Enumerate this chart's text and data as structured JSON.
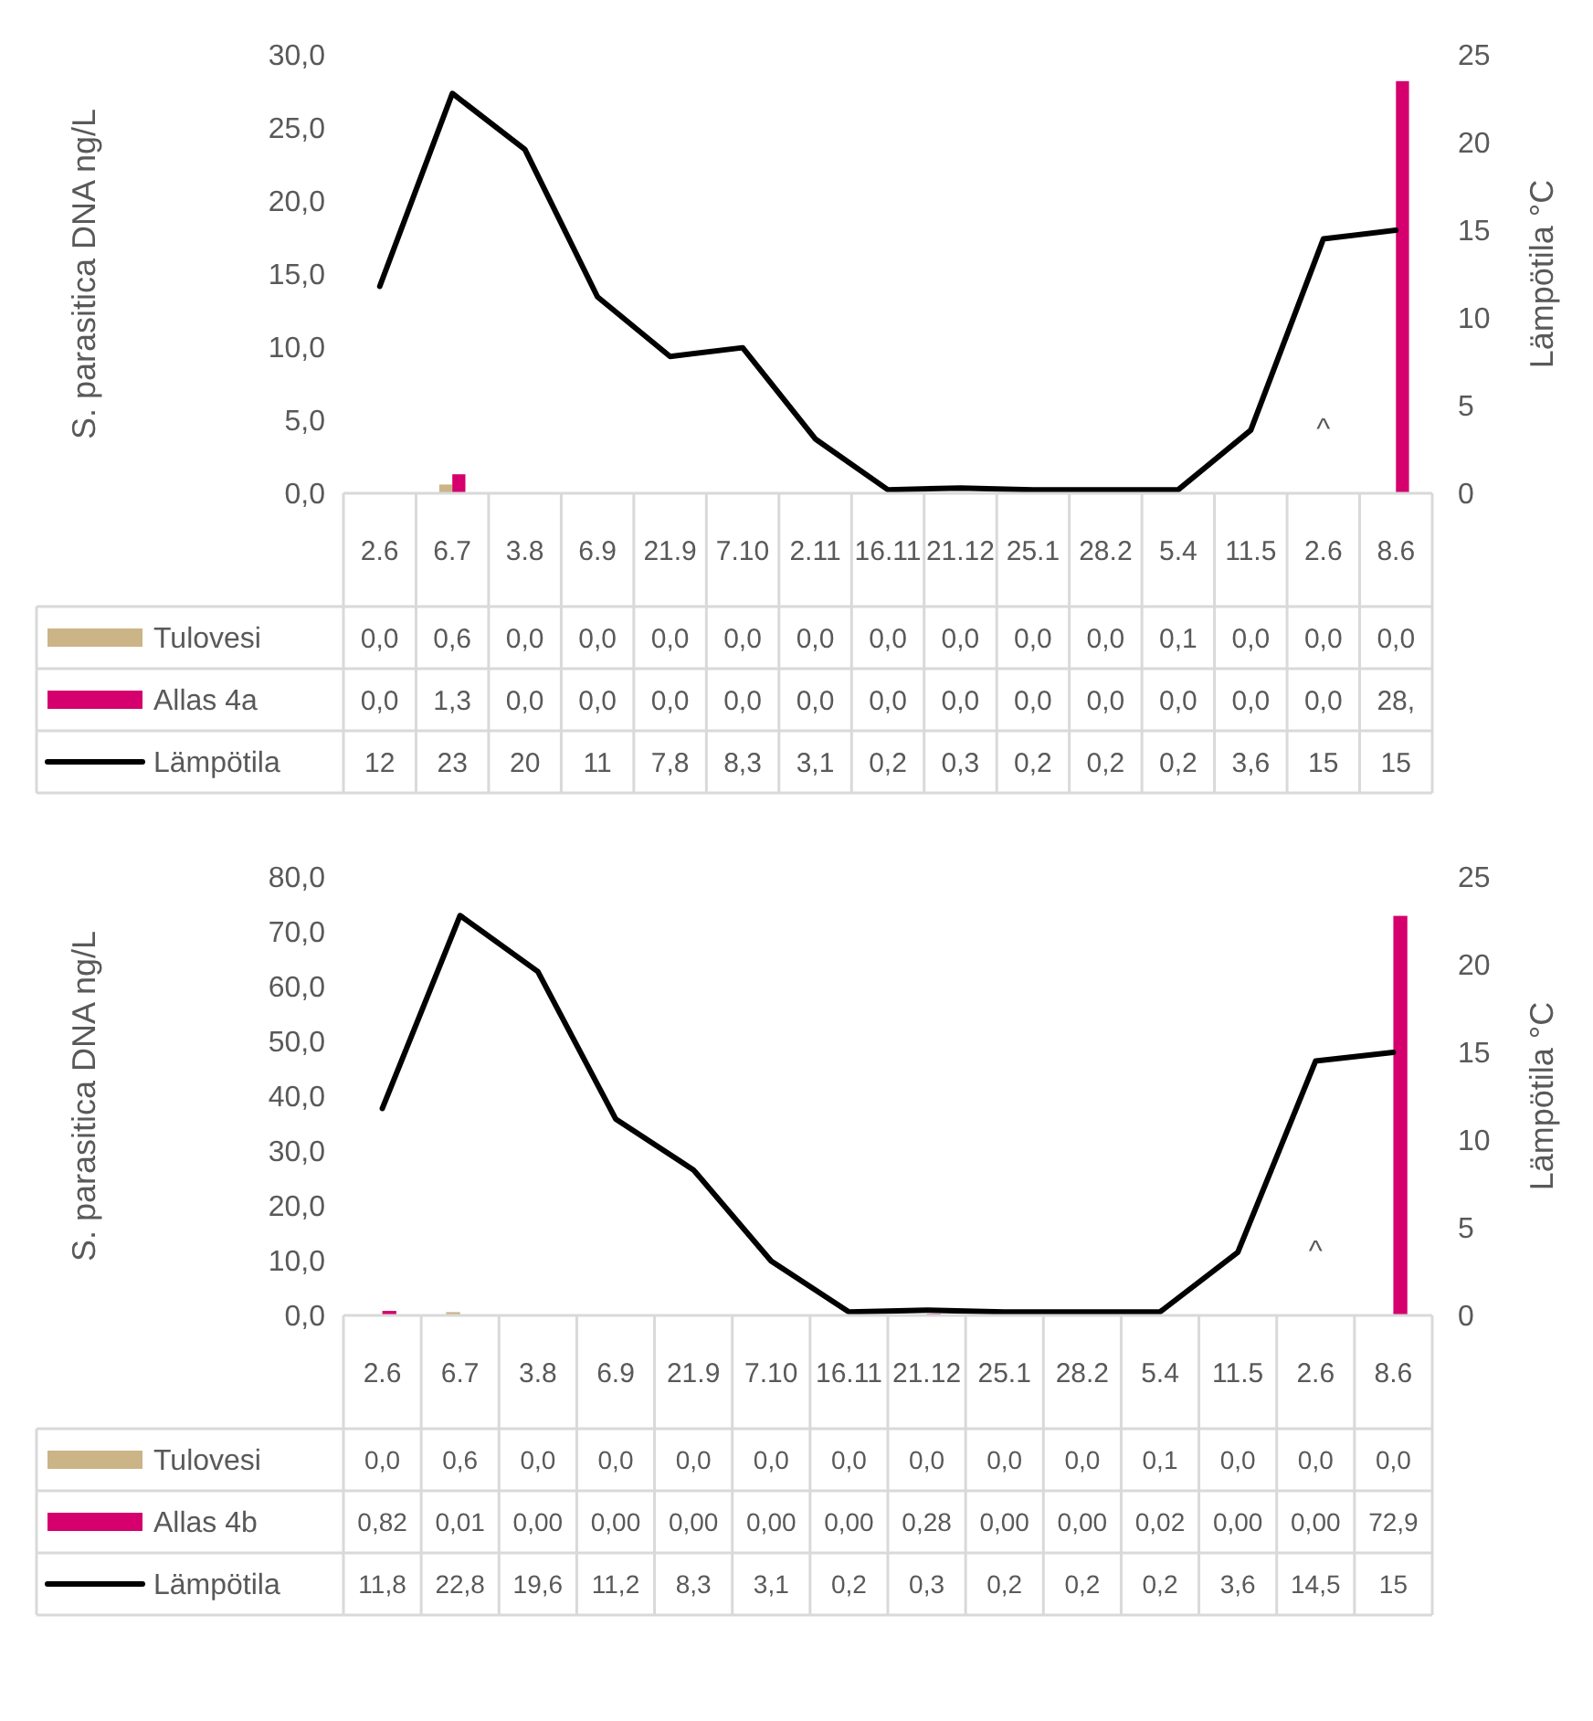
{
  "chart_data": [
    {
      "type": "bar",
      "ylabel": "S. parasitica DNA ng/L",
      "y2label": "Lämpötila °C",
      "categories": [
        "2.6",
        "6.7",
        "3.8",
        "6.9",
        "21.9",
        "7.10",
        "2.11",
        "16.11",
        "21.12",
        "25.1",
        "28.2",
        "5.4",
        "11.5",
        "2.6",
        "8.6"
      ],
      "ylim": [
        0,
        30
      ],
      "yticks": [
        {
          "value": 0,
          "label": "0,0"
        },
        {
          "value": 5,
          "label": "5,0"
        },
        {
          "value": 10,
          "label": "10,0"
        },
        {
          "value": 15,
          "label": "15,0"
        },
        {
          "value": 20,
          "label": "20,0"
        },
        {
          "value": 25,
          "label": "25,0"
        },
        {
          "value": 30,
          "label": "30,0"
        }
      ],
      "y2lim": [
        0,
        25
      ],
      "y2ticks": [
        0,
        5,
        10,
        15,
        20,
        25
      ],
      "legend": "bottom",
      "annotations": [
        "^"
      ],
      "series": [
        {
          "name": "Tulovesi",
          "color": "#cbb486",
          "values": [
            0,
            0.6,
            0,
            0,
            0,
            0,
            0,
            0,
            0,
            0,
            0,
            0.1,
            0,
            0,
            0
          ],
          "value_labels": [
            "0,0",
            "0,6",
            "0,0",
            "0,0",
            "0,0",
            "0,0",
            "0,0",
            "0,0",
            "0,0",
            "0,0",
            "0,0",
            "0,1",
            "0,0",
            "0,0",
            "0,0"
          ]
        },
        {
          "name": "Allas 4a",
          "color": "#d5006d",
          "values": [
            0,
            1.3,
            0,
            0,
            0,
            0,
            0,
            0,
            0,
            0,
            0,
            0,
            0,
            0,
            28.2
          ],
          "value_labels": [
            "0,0",
            "1,3",
            "0,0",
            "0,0",
            "0,0",
            "0,0",
            "0,0",
            "0,0",
            "0,0",
            "0,0",
            "0,0",
            "0,0",
            "0,0",
            "0,0",
            "28,"
          ]
        },
        {
          "name": "Lämpötila",
          "type": "line",
          "axis": "y2",
          "color": "#000000",
          "values": [
            11.8,
            22.8,
            19.6,
            11.2,
            7.8,
            8.3,
            3.1,
            0.2,
            0.3,
            0.2,
            0.2,
            0.2,
            3.6,
            14.5,
            15
          ],
          "value_labels": [
            "12",
            "23",
            "20",
            "11",
            "7,8",
            "8,3",
            "3,1",
            "0,2",
            "0,3",
            "0,2",
            "0,2",
            "0,2",
            "3,6",
            "15",
            "15"
          ]
        }
      ]
    },
    {
      "type": "bar",
      "ylabel": "S. parasitica DNA ng/L",
      "y2label": "Lämpötila °C",
      "categories": [
        "2.6",
        "6.7",
        "3.8",
        "6.9",
        "21.9",
        "7.10",
        "16.11",
        "21.12",
        "25.1",
        "28.2",
        "5.4",
        "11.5",
        "2.6",
        "8.6"
      ],
      "ylim": [
        0,
        80
      ],
      "yticks": [
        {
          "value": 0,
          "label": "0,0"
        },
        {
          "value": 10,
          "label": "10,0"
        },
        {
          "value": 20,
          "label": "20,0"
        },
        {
          "value": 30,
          "label": "30,0"
        },
        {
          "value": 40,
          "label": "40,0"
        },
        {
          "value": 50,
          "label": "50,0"
        },
        {
          "value": 60,
          "label": "60,0"
        },
        {
          "value": 70,
          "label": "70,0"
        },
        {
          "value": 80,
          "label": "80,0"
        }
      ],
      "y2lim": [
        0,
        25
      ],
      "y2ticks": [
        0,
        5,
        10,
        15,
        20,
        25
      ],
      "legend": "bottom",
      "annotations": [
        "^"
      ],
      "series": [
        {
          "name": "Tulovesi",
          "color": "#cbb486",
          "values": [
            0,
            0.6,
            0,
            0,
            0,
            0,
            0,
            0,
            0,
            0,
            0.1,
            0,
            0,
            0
          ],
          "value_labels": [
            "0,0",
            "0,6",
            "0,0",
            "0,0",
            "0,0",
            "0,0",
            "0,0",
            "0,0",
            "0,0",
            "0,0",
            "0,1",
            "0,0",
            "0,0",
            "0,0"
          ]
        },
        {
          "name": "Allas 4b",
          "color": "#d5006d",
          "values": [
            0.82,
            0.01,
            0,
            0,
            0,
            0,
            0,
            0.28,
            0,
            0,
            0.02,
            0,
            0,
            72.9
          ],
          "value_labels": [
            "0,82",
            "0,01",
            "0,00",
            "0,00",
            "0,00",
            "0,00",
            "0,00",
            "0,28",
            "0,00",
            "0,00",
            "0,02",
            "0,00",
            "0,00",
            "72,9"
          ]
        },
        {
          "name": "Lämpötila",
          "type": "line",
          "axis": "y2",
          "color": "#000000",
          "values": [
            11.8,
            22.8,
            19.6,
            11.2,
            8.3,
            3.1,
            0.2,
            0.3,
            0.2,
            0.2,
            0.2,
            3.6,
            14.5,
            15
          ],
          "value_labels": [
            "11,8",
            "22,8",
            "19,6",
            "11,2",
            "8,3",
            "3,1",
            "0,2",
            "0,3",
            "0,2",
            "0,2",
            "0,2",
            "3,6",
            "14,5",
            "15"
          ]
        }
      ]
    }
  ]
}
